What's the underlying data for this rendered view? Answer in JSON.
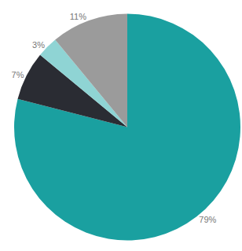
{
  "chart_data": {
    "type": "pie",
    "values": [
      79,
      7,
      3,
      11
    ],
    "value_labels": [
      "79%",
      "7%",
      "3%",
      "11%"
    ],
    "colors": [
      "#1aa0a0",
      "#2a2c33",
      "#8fd4d4",
      "#9b9b9b"
    ],
    "data_labels": true
  }
}
